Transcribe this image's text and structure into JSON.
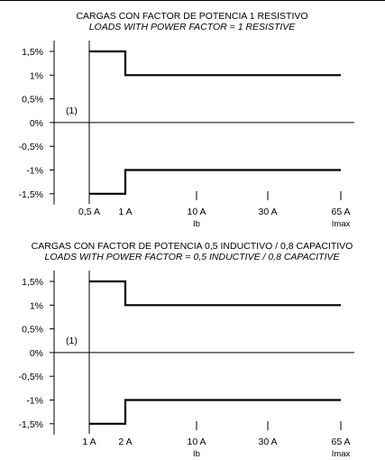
{
  "chart_data": [
    {
      "type": "line",
      "title": "CARGAS CON FACTOR DE POTENCIA 1 RESISTIVO",
      "subtitle": "LOADS WITH POWER FACTOR = 1 RESISTIVE",
      "y_ticks": [
        "1,5%",
        "1%",
        "0,5%",
        "0%",
        "-0,5%",
        "-1%",
        "-1,5%"
      ],
      "y_values": [
        1.5,
        1,
        0.5,
        0,
        -0.5,
        -1,
        -1.5
      ],
      "ylim": [
        -1.5,
        1.5
      ],
      "x_ticks": [
        {
          "label": "0,5 A",
          "sub": ""
        },
        {
          "label": "1 A",
          "sub": ""
        },
        {
          "label": "10 A",
          "sub": "Ib"
        },
        {
          "label": "30 A",
          "sub": ""
        },
        {
          "label": "65 A",
          "sub": "Imax"
        }
      ],
      "note": "(1)",
      "series": [
        {
          "x": [
            "0,5 A",
            "1 A",
            "1 A",
            "65 A"
          ],
          "y": [
            1.5,
            1.5,
            1,
            1
          ]
        },
        {
          "x": [
            "0,5 A",
            "1 A",
            "1 A",
            "65 A"
          ],
          "y": [
            -1.5,
            -1.5,
            -1,
            -1
          ]
        }
      ]
    },
    {
      "type": "line",
      "title": "CARGAS CON FACTOR DE POTENCIA 0,5 INDUCTIVO / 0,8 CAPACITIVO",
      "subtitle": "LOADS WITH POWER FACTOR = 0,5 INDUCTIVE / 0,8 CAPACITIVE",
      "y_ticks": [
        "1,5%",
        "1%",
        "0,5%",
        "0%",
        "-0,5%",
        "-1%",
        "-1,5%"
      ],
      "y_values": [
        1.5,
        1,
        0.5,
        0,
        -0.5,
        -1,
        -1.5
      ],
      "ylim": [
        -1.5,
        1.5
      ],
      "x_ticks": [
        {
          "label": "1 A",
          "sub": ""
        },
        {
          "label": "2 A",
          "sub": ""
        },
        {
          "label": "10 A",
          "sub": "Ib"
        },
        {
          "label": "30 A",
          "sub": ""
        },
        {
          "label": "65 A",
          "sub": "Imax"
        }
      ],
      "note": "(1)",
      "series": [
        {
          "x": [
            "1 A",
            "2 A",
            "2 A",
            "65 A"
          ],
          "y": [
            1.5,
            1.5,
            1,
            1
          ]
        },
        {
          "x": [
            "1 A",
            "2 A",
            "2 A",
            "65 A"
          ],
          "y": [
            -1.5,
            -1.5,
            -1,
            -1
          ]
        }
      ]
    }
  ]
}
